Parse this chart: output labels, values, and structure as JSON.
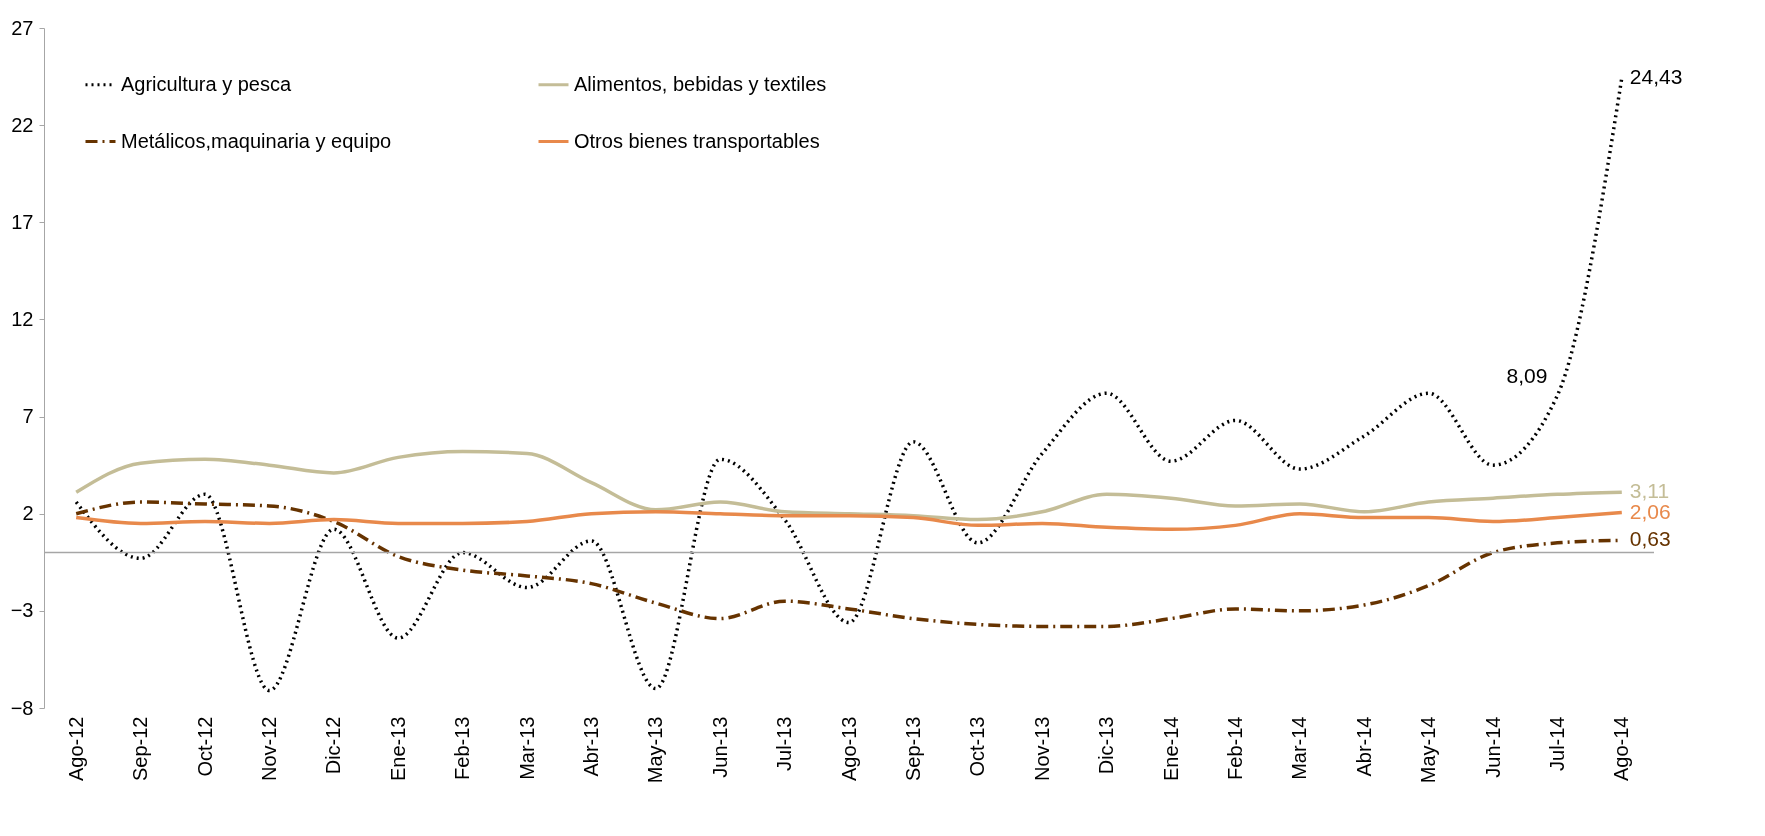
{
  "chart_data": {
    "type": "line",
    "categories": [
      "Ago-12",
      "Sep-12",
      "Oct-12",
      "Nov-12",
      "Dic-12",
      "Ene-13",
      "Feb-13",
      "Mar-13",
      "Abr-13",
      "May-13",
      "Jun-13",
      "Jul-13",
      "Ago-13",
      "Sep-13",
      "Oct-13",
      "Nov-13",
      "Dic-13",
      "Ene-14",
      "Feb-14",
      "Mar-14",
      "Abr-14",
      "May-14",
      "Jun-14",
      "Jul-14",
      "Ago-14"
    ],
    "series": [
      {
        "name": "Agricultura y pesca",
        "color": "#000000",
        "line_style": "dotted",
        "values": [
          2.6,
          -0.3,
          3.0,
          -7.1,
          1.2,
          -4.4,
          0.0,
          -1.8,
          0.6,
          -7.0,
          4.8,
          1.7,
          -3.6,
          5.7,
          0.5,
          5.1,
          8.2,
          4.7,
          6.8,
          4.3,
          6.0,
          8.2,
          4.5,
          8.09,
          24.43
        ],
        "value_labels": [
          null,
          null,
          null,
          null,
          null,
          null,
          null,
          null,
          null,
          null,
          null,
          null,
          null,
          null,
          null,
          null,
          null,
          null,
          null,
          null,
          null,
          null,
          null,
          "8,09",
          "24,43"
        ]
      },
      {
        "name": "Metálicos,maquinaria y equipo",
        "color": "#663300",
        "line_style": "dashdot",
        "values": [
          2.0,
          2.6,
          2.5,
          2.4,
          1.6,
          -0.2,
          -0.9,
          -1.2,
          -1.6,
          -2.6,
          -3.4,
          -2.5,
          -2.9,
          -3.4,
          -3.7,
          -3.8,
          -3.8,
          -3.4,
          -2.9,
          -3.0,
          -2.7,
          -1.7,
          0.0,
          0.5,
          0.63
        ],
        "value_labels": [
          null,
          null,
          null,
          null,
          null,
          null,
          null,
          null,
          null,
          null,
          null,
          null,
          null,
          null,
          null,
          null,
          null,
          null,
          null,
          null,
          null,
          null,
          null,
          null,
          "0,63"
        ]
      },
      {
        "name": "Alimentos, bebidas y textiles",
        "color": "#c4bd97",
        "line_style": "solid",
        "values": [
          3.1,
          4.6,
          4.8,
          4.5,
          4.1,
          4.9,
          5.2,
          5.1,
          3.6,
          2.2,
          2.6,
          2.1,
          2.0,
          1.9,
          1.7,
          2.1,
          3.0,
          2.8,
          2.4,
          2.5,
          2.1,
          2.6,
          2.8,
          3.0,
          3.11
        ],
        "value_labels": [
          null,
          null,
          null,
          null,
          null,
          null,
          null,
          null,
          null,
          null,
          null,
          null,
          null,
          null,
          null,
          null,
          null,
          null,
          null,
          null,
          null,
          null,
          null,
          null,
          "3,11"
        ]
      },
      {
        "name": "Otros bienes transportables",
        "color": "#e8894b",
        "line_style": "solid",
        "values": [
          1.8,
          1.5,
          1.6,
          1.5,
          1.7,
          1.5,
          1.5,
          1.6,
          2.0,
          2.1,
          2.0,
          1.9,
          1.9,
          1.8,
          1.4,
          1.5,
          1.3,
          1.2,
          1.4,
          2.0,
          1.8,
          1.8,
          1.6,
          1.8,
          2.06
        ],
        "value_labels": [
          null,
          null,
          null,
          null,
          null,
          null,
          null,
          null,
          null,
          null,
          null,
          null,
          null,
          null,
          null,
          null,
          null,
          null,
          null,
          null,
          null,
          null,
          null,
          null,
          "2,06"
        ]
      }
    ],
    "ylim": [
      -8,
      27
    ],
    "yticks": [
      -8,
      -3,
      2,
      7,
      12,
      17,
      22,
      27
    ],
    "grid": false,
    "legend": "top left",
    "ref_lines": [
      {
        "axis": "y",
        "value": 0,
        "color": "#a6a6a6"
      }
    ]
  }
}
